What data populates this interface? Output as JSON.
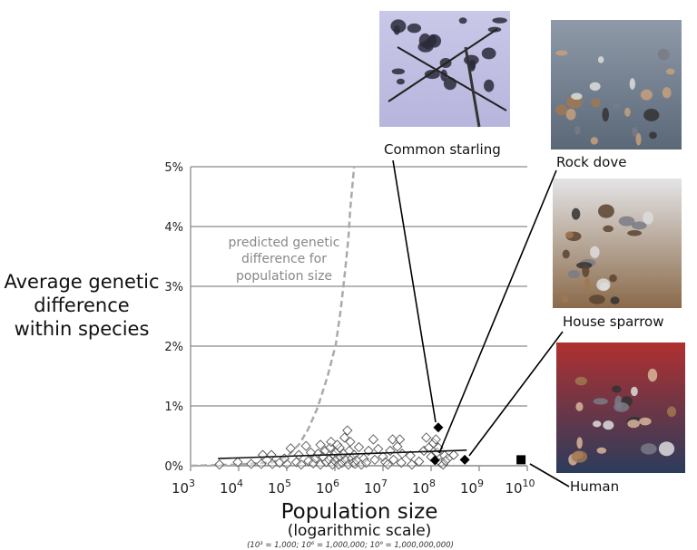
{
  "chart_data": {
    "type": "scatter",
    "xlabel": "Population size",
    "xlabel_sub": "(logarithmic scale)",
    "x_footnote": "(10³ = 1,000; 10⁶ = 1,000,000; 10⁹ = 1,000,000,000)",
    "ylabel_lines": [
      "Average genetic",
      "difference",
      "within species"
    ],
    "x_scale": "log",
    "xlim_exponent": [
      3,
      10
    ],
    "x_tick_base": "10",
    "x_tick_exponents": [
      "3",
      "4",
      "5",
      "6",
      "7",
      "8",
      "9",
      "10"
    ],
    "ylim": [
      0,
      5
    ],
    "y_ticks": [
      "0%",
      "1%",
      "2%",
      "3%",
      "4%",
      "5%"
    ],
    "grid": "horizontal",
    "species_points": {
      "marker": "open-diamond",
      "points_log10x_pct": [
        [
          3.6,
          0.02
        ],
        [
          3.98,
          0.06
        ],
        [
          4.26,
          0.03
        ],
        [
          4.47,
          0.03
        ],
        [
          4.5,
          0.18
        ],
        [
          4.68,
          0.18
        ],
        [
          4.7,
          0.03
        ],
        [
          4.85,
          0.05
        ],
        [
          5.08,
          0.29
        ],
        [
          5.0,
          0.03
        ],
        [
          5.2,
          0.06
        ],
        [
          5.25,
          0.18
        ],
        [
          5.4,
          0.33
        ],
        [
          5.3,
          0.02
        ],
        [
          5.45,
          0.08
        ],
        [
          5.55,
          0.04
        ],
        [
          5.6,
          0.12
        ],
        [
          5.65,
          0.2
        ],
        [
          5.7,
          0.02
        ],
        [
          5.75,
          0.15
        ],
        [
          5.8,
          0.25
        ],
        [
          5.82,
          0.06
        ],
        [
          5.88,
          0.1
        ],
        [
          5.9,
          0.3
        ],
        [
          5.95,
          0.02
        ],
        [
          5.98,
          0.18
        ],
        [
          6.0,
          0.08
        ],
        [
          6.02,
          0.22
        ],
        [
          6.05,
          0.12
        ],
        [
          6.08,
          0.02
        ],
        [
          6.1,
          0.3
        ],
        [
          6.12,
          0.15
        ],
        [
          6.15,
          0.05
        ],
        [
          6.18,
          0.2
        ],
        [
          6.2,
          0.47
        ],
        [
          6.22,
          0.1
        ],
        [
          6.26,
          0.59
        ],
        [
          6.28,
          0.02
        ],
        [
          6.3,
          0.25
        ],
        [
          6.32,
          0.4
        ],
        [
          6.35,
          0.12
        ],
        [
          6.38,
          0.05
        ],
        [
          6.4,
          0.18
        ],
        [
          6.42,
          0.03
        ],
        [
          6.45,
          0.09
        ],
        [
          6.5,
          0.31
        ],
        [
          6.55,
          0.02
        ],
        [
          6.6,
          0.12
        ],
        [
          6.65,
          0.05
        ],
        [
          5.92,
          0.4
        ],
        [
          6.05,
          0.35
        ],
        [
          5.7,
          0.35
        ],
        [
          6.8,
          0.44
        ],
        [
          6.83,
          0.1
        ],
        [
          6.9,
          0.28
        ],
        [
          7.0,
          0.15
        ],
        [
          7.05,
          0.06
        ],
        [
          7.1,
          0.02
        ],
        [
          7.15,
          0.25
        ],
        [
          7.2,
          0.44
        ],
        [
          7.22,
          0.1
        ],
        [
          7.3,
          0.32
        ],
        [
          7.35,
          0.44
        ],
        [
          7.38,
          0.05
        ],
        [
          7.4,
          0.2
        ],
        [
          7.57,
          0.17
        ],
        [
          7.75,
          0.07
        ],
        [
          7.85,
          0.25
        ],
        [
          7.9,
          0.47
        ],
        [
          7.95,
          0.3
        ],
        [
          8.0,
          0.15
        ],
        [
          8.05,
          0.38
        ],
        [
          8.1,
          0.44
        ],
        [
          8.12,
          0.22
        ],
        [
          8.15,
          0.3
        ],
        [
          8.2,
          0.05
        ],
        [
          8.25,
          0.02
        ],
        [
          8.28,
          0.17
        ],
        [
          8.35,
          0.12
        ],
        [
          8.47,
          0.18
        ],
        [
          8.3,
          0.08
        ],
        [
          7.6,
          0.02
        ],
        [
          6.7,
          0.25
        ],
        [
          4.95,
          0.12
        ],
        [
          5.5,
          0.22
        ]
      ]
    },
    "trend_line": {
      "from": [
        3.57,
        0.12
      ],
      "to": [
        8.74,
        0.26
      ]
    },
    "prediction_curve": {
      "label_lines": [
        "predicted genetic",
        "difference for",
        "population size"
      ],
      "points_log10x_pct": [
        [
          3.0,
          0.0
        ],
        [
          4.0,
          0.02
        ],
        [
          4.7,
          0.06
        ],
        [
          5.0,
          0.15
        ],
        [
          5.26,
          0.36
        ],
        [
          5.45,
          0.62
        ],
        [
          5.64,
          0.97
        ],
        [
          5.85,
          1.5
        ],
        [
          6.02,
          2.03
        ],
        [
          6.12,
          2.6
        ],
        [
          6.21,
          3.24
        ],
        [
          6.28,
          3.8
        ],
        [
          6.32,
          4.3
        ],
        [
          6.4,
          5.0
        ]
      ]
    },
    "highlighted": [
      {
        "name": "Common starling",
        "marker": "filled-diamond",
        "log10x": 8.15,
        "pct": 0.64
      },
      {
        "name": "Rock dove",
        "marker": "filled-diamond",
        "log10x": 8.08,
        "pct": 0.09
      },
      {
        "name": "House sparrow",
        "marker": "filled-diamond",
        "log10x": 8.7,
        "pct": 0.1
      },
      {
        "name": "Human",
        "marker": "filled-square",
        "log10x": 9.87,
        "pct": 0.1
      }
    ]
  },
  "colors": {
    "grid": "#8a8a8a",
    "prediction": "#aaaaaa",
    "points": "#555555",
    "highlight": "#000000"
  },
  "photos": [
    {
      "species": "Common starling",
      "colors": [
        "#c9c8e8",
        "#b7b5dc",
        "#2a2a3a"
      ]
    },
    {
      "species": "Rock dove",
      "colors": [
        "#8e9aa8",
        "#5b6878",
        "#c7a07c"
      ]
    },
    {
      "species": "House sparrow",
      "colors": [
        "#e4e4e6",
        "#8a6a4a",
        "#5a4330"
      ]
    },
    {
      "species": "Human",
      "colors": [
        "#b03030",
        "#2c3c5c",
        "#d9b59a"
      ]
    }
  ]
}
